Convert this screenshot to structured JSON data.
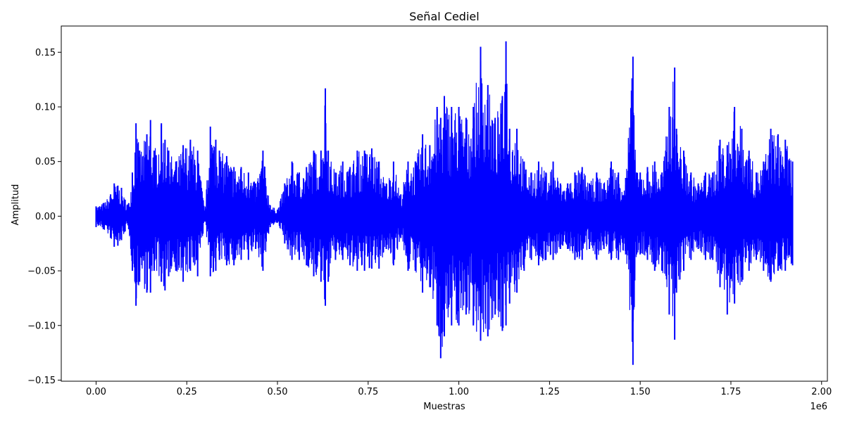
{
  "chart_data": {
    "type": "line",
    "title": "Señal Cediel",
    "xlabel": "Muestras",
    "ylabel": "Amplitud",
    "x_offset_label": "1e6",
    "xlim": [
      -0.096,
      2.016
    ],
    "ylim": [
      -0.151,
      0.174
    ],
    "x_ticks": [
      0.0,
      0.25,
      0.5,
      0.75,
      1.0,
      1.25,
      1.5,
      1.75,
      2.0
    ],
    "x_tick_labels": [
      "0.00",
      "0.25",
      "0.50",
      "0.75",
      "1.00",
      "1.25",
      "1.50",
      "1.75",
      "2.00"
    ],
    "y_ticks": [
      -0.15,
      -0.1,
      -0.05,
      0.0,
      0.05,
      0.1,
      0.15
    ],
    "y_tick_labels": [
      "−0.15",
      "−0.10",
      "−0.05",
      "0.00",
      "0.05",
      "0.10",
      "0.15"
    ],
    "grid": false,
    "series": [
      {
        "color": "#0000ff",
        "x": [
          0.0,
          0.02,
          0.04,
          0.05,
          0.06,
          0.07,
          0.08,
          0.09,
          0.1,
          0.11,
          0.12,
          0.14,
          0.15,
          0.16,
          0.18,
          0.19,
          0.2,
          0.22,
          0.24,
          0.26,
          0.28,
          0.3,
          0.315,
          0.33,
          0.34,
          0.36,
          0.38,
          0.4,
          0.42,
          0.44,
          0.46,
          0.48,
          0.5,
          0.52,
          0.54,
          0.56,
          0.58,
          0.6,
          0.62,
          0.632,
          0.64,
          0.66,
          0.68,
          0.7,
          0.72,
          0.74,
          0.76,
          0.78,
          0.8,
          0.82,
          0.84,
          0.86,
          0.88,
          0.9,
          0.92,
          0.94,
          0.95,
          0.96,
          0.98,
          1.0,
          1.02,
          1.04,
          1.06,
          1.08,
          1.1,
          1.12,
          1.13,
          1.14,
          1.16,
          1.18,
          1.2,
          1.22,
          1.24,
          1.26,
          1.28,
          1.3,
          1.32,
          1.34,
          1.36,
          1.38,
          1.4,
          1.42,
          1.44,
          1.46,
          1.48,
          1.49,
          1.5,
          1.52,
          1.54,
          1.56,
          1.58,
          1.595,
          1.6,
          1.62,
          1.64,
          1.66,
          1.68,
          1.7,
          1.72,
          1.74,
          1.76,
          1.78,
          1.8,
          1.82,
          1.84,
          1.86,
          1.88,
          1.9,
          1.92
        ],
        "upper": [
          0.009,
          0.012,
          0.02,
          0.03,
          0.028,
          0.026,
          0.015,
          0.012,
          0.04,
          0.085,
          0.06,
          0.075,
          0.088,
          0.06,
          0.085,
          0.07,
          0.06,
          0.05,
          0.065,
          0.07,
          0.06,
          0.005,
          0.082,
          0.07,
          0.06,
          0.055,
          0.045,
          0.045,
          0.04,
          0.03,
          0.06,
          0.01,
          0.006,
          0.03,
          0.05,
          0.04,
          0.045,
          0.06,
          0.06,
          0.117,
          0.06,
          0.04,
          0.05,
          0.045,
          0.06,
          0.06,
          0.062,
          0.05,
          0.03,
          0.05,
          0.02,
          0.05,
          0.05,
          0.075,
          0.065,
          0.1,
          0.09,
          0.11,
          0.1,
          0.1,
          0.09,
          0.1,
          0.155,
          0.12,
          0.09,
          0.11,
          0.16,
          0.08,
          0.08,
          0.05,
          0.04,
          0.05,
          0.04,
          0.05,
          0.03,
          0.03,
          0.04,
          0.045,
          0.03,
          0.04,
          0.03,
          0.05,
          0.04,
          0.035,
          0.146,
          0.04,
          0.04,
          0.045,
          0.05,
          0.04,
          0.1,
          0.136,
          0.08,
          0.06,
          0.04,
          0.03,
          0.04,
          0.04,
          0.07,
          0.065,
          0.1,
          0.08,
          0.06,
          0.04,
          0.05,
          0.08,
          0.075,
          0.07,
          0.05
        ],
        "lower": [
          -0.01,
          -0.012,
          -0.02,
          -0.028,
          -0.027,
          -0.022,
          -0.014,
          -0.012,
          -0.05,
          -0.082,
          -0.06,
          -0.07,
          -0.07,
          -0.05,
          -0.06,
          -0.068,
          -0.055,
          -0.05,
          -0.06,
          -0.05,
          -0.055,
          -0.005,
          -0.055,
          -0.05,
          -0.04,
          -0.045,
          -0.045,
          -0.04,
          -0.04,
          -0.03,
          -0.05,
          -0.01,
          -0.006,
          -0.025,
          -0.04,
          -0.04,
          -0.045,
          -0.055,
          -0.06,
          -0.082,
          -0.06,
          -0.04,
          -0.04,
          -0.045,
          -0.05,
          -0.05,
          -0.048,
          -0.048,
          -0.03,
          -0.045,
          -0.02,
          -0.05,
          -0.05,
          -0.07,
          -0.065,
          -0.1,
          -0.13,
          -0.11,
          -0.1,
          -0.1,
          -0.09,
          -0.1,
          -0.114,
          -0.11,
          -0.09,
          -0.105,
          -0.1,
          -0.08,
          -0.07,
          -0.05,
          -0.04,
          -0.045,
          -0.04,
          -0.04,
          -0.03,
          -0.03,
          -0.04,
          -0.04,
          -0.03,
          -0.04,
          -0.03,
          -0.04,
          -0.04,
          -0.035,
          -0.136,
          -0.035,
          -0.035,
          -0.04,
          -0.05,
          -0.05,
          -0.09,
          -0.113,
          -0.07,
          -0.05,
          -0.04,
          -0.03,
          -0.04,
          -0.04,
          -0.065,
          -0.09,
          -0.08,
          -0.06,
          -0.05,
          -0.04,
          -0.05,
          -0.06,
          -0.05,
          -0.05,
          -0.045
        ]
      }
    ]
  }
}
